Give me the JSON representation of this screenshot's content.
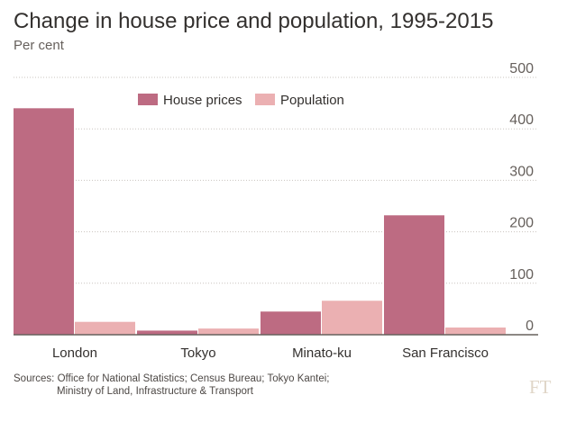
{
  "chart_data": {
    "type": "bar",
    "title": "Change in house price and population, 1995-2015",
    "subtitle": "Per cent",
    "xlabel": "",
    "ylabel": "Per cent",
    "ylim": [
      0,
      500
    ],
    "yticks": [
      0,
      100,
      200,
      300,
      400,
      500
    ],
    "categories": [
      "London",
      "Tokyo",
      "Minato-ku",
      "San Francisco"
    ],
    "series": [
      {
        "name": "House prices",
        "color": "#bd6b82",
        "values": [
          440,
          8,
          45,
          232
        ]
      },
      {
        "name": "Population",
        "color": "#ebb0b2",
        "values": [
          25,
          12,
          66,
          14
        ]
      }
    ],
    "legend": "top-center",
    "grid": true
  },
  "source": {
    "line1": "Sources: Office for National Statistics; Census Bureau; Tokyo Kantei;",
    "line2": "Ministry of Land, Infrastructure & Transport"
  },
  "logo": "FT",
  "colors": {
    "background": "#ffffff",
    "grid": "#c9c4bf",
    "axis": "#66605c"
  }
}
